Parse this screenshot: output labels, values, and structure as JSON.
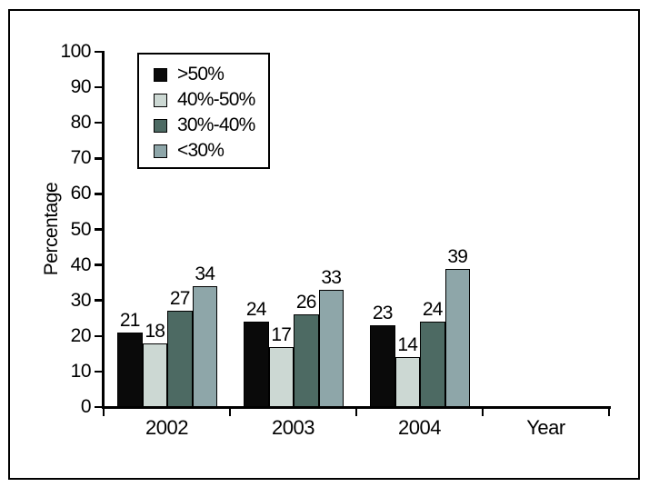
{
  "figure": {
    "background": "#ffffff",
    "frame_border_color": "#000000"
  },
  "chart_data": {
    "type": "bar",
    "title": "",
    "ylabel": "Percentage",
    "xlabel": "Year",
    "ylim": [
      0,
      100
    ],
    "ytick_step": 10,
    "yticks": [
      0,
      10,
      20,
      30,
      40,
      50,
      60,
      70,
      80,
      90,
      100
    ],
    "categories": [
      "2002",
      "2003",
      "2004"
    ],
    "series": [
      {
        "name": ">50%",
        "color": "#0a0a0a",
        "values": [
          21,
          24,
          23
        ]
      },
      {
        "name": "40%-50%",
        "color": "#ccd8d3",
        "values": [
          18,
          17,
          14
        ]
      },
      {
        "name": "30%-40%",
        "color": "#4d6a63",
        "values": [
          27,
          26,
          24
        ]
      },
      {
        "name": "<30%",
        "color": "#8ea6a9",
        "values": [
          34,
          33,
          39
        ]
      }
    ],
    "bar_value_labels": true,
    "legend_position": "upper-left",
    "grid": false,
    "axis_color": "#000000"
  }
}
